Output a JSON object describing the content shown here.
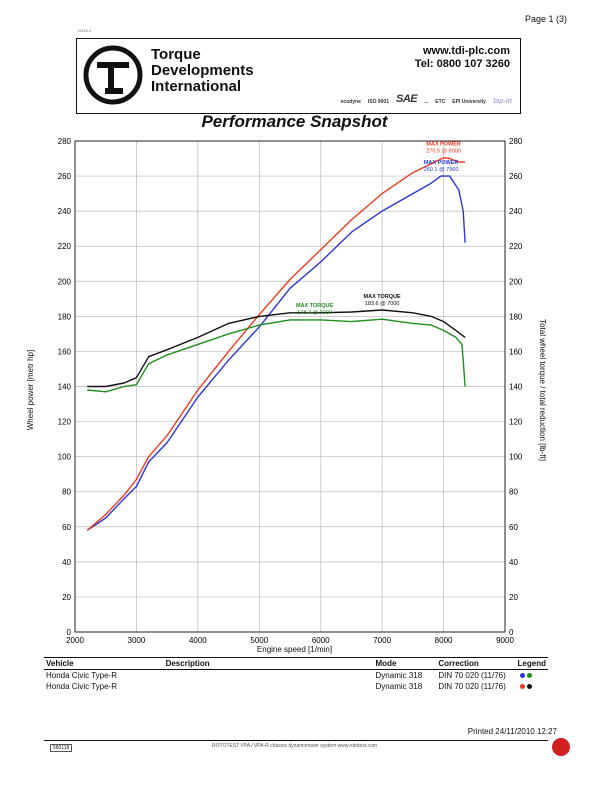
{
  "page": {
    "number": "Page 1 (3)",
    "doc_code": "DS10-1",
    "sheet_number": "580118",
    "printed": "Printed 24/11/2010 12:27",
    "footer_note": "ROTOTEST VPA / VPA-R chassis dynamometer system   www.rototest.com"
  },
  "header": {
    "company_line1": "Torque",
    "company_line2": "Developments",
    "company_line3": "International",
    "website": "www.tdi-plc.com",
    "phone": "Tel: 0800 107 3260",
    "certifications": [
      "ecodyne",
      "ISO 9001",
      "SAE",
      "...",
      "ETC",
      "EPI University",
      "tap-in"
    ]
  },
  "colors": {
    "power_run1": "#2a36d8",
    "power_run2": "#ef3a1e",
    "torque_run1": "#1d8f1d",
    "torque_run2": "#111111",
    "grid": "#bdbdbd",
    "seal": "#d02020"
  },
  "chart_data": {
    "type": "line",
    "title": "Performance Snapshot",
    "xlabel": "Engine speed [1/min]",
    "ylabel": "Wheel power [metr hp]",
    "ylabel_right": "Total wheel torque / total reduction [lb-ft]",
    "xlim": [
      2000,
      9000
    ],
    "ylim": [
      0,
      280
    ],
    "ylim_right": [
      0,
      280
    ],
    "x_ticks": [
      2000,
      3000,
      4000,
      5000,
      6000,
      7000,
      8000,
      9000
    ],
    "y_ticks": [
      0,
      20,
      40,
      60,
      80,
      100,
      120,
      140,
      160,
      180,
      200,
      220,
      240,
      260,
      280
    ],
    "grid": true,
    "series": [
      {
        "axis": "left",
        "color": "#2a36d8",
        "points": [
          [
            2200,
            58
          ],
          [
            2500,
            65
          ],
          [
            2800,
            76
          ],
          [
            3000,
            83
          ],
          [
            3200,
            97
          ],
          [
            3500,
            108
          ],
          [
            4000,
            134
          ],
          [
            4500,
            155
          ],
          [
            5000,
            174
          ],
          [
            5500,
            196
          ],
          [
            6000,
            211
          ],
          [
            6500,
            228
          ],
          [
            7000,
            240
          ],
          [
            7500,
            250
          ],
          [
            7800,
            256
          ],
          [
            7960,
            260.1
          ],
          [
            8100,
            260
          ],
          [
            8250,
            252
          ],
          [
            8320,
            240
          ],
          [
            8350,
            222
          ]
        ]
      },
      {
        "axis": "left",
        "color": "#ef3a1e",
        "points": [
          [
            2200,
            58
          ],
          [
            2500,
            67
          ],
          [
            2800,
            78
          ],
          [
            3000,
            87
          ],
          [
            3200,
            100
          ],
          [
            3500,
            112
          ],
          [
            4000,
            138
          ],
          [
            4500,
            160
          ],
          [
            5000,
            181
          ],
          [
            5500,
            201
          ],
          [
            6000,
            218
          ],
          [
            6500,
            235
          ],
          [
            7000,
            250
          ],
          [
            7500,
            262
          ],
          [
            8000,
            270.5
          ],
          [
            8100,
            270
          ],
          [
            8250,
            268
          ],
          [
            8350,
            268
          ]
        ]
      },
      {
        "axis": "right",
        "color": "#111111",
        "points": [
          [
            2200,
            140
          ],
          [
            2500,
            140
          ],
          [
            2800,
            142
          ],
          [
            3000,
            145
          ],
          [
            3200,
            157
          ],
          [
            3500,
            161
          ],
          [
            4000,
            168
          ],
          [
            4500,
            176
          ],
          [
            5000,
            180
          ],
          [
            5500,
            182
          ],
          [
            6000,
            182
          ],
          [
            6500,
            182.5
          ],
          [
            7000,
            183.6
          ],
          [
            7500,
            182
          ],
          [
            7800,
            180
          ],
          [
            8000,
            177
          ],
          [
            8200,
            172
          ],
          [
            8350,
            168
          ]
        ]
      },
      {
        "axis": "right",
        "color": "#1d8f1d",
        "points": [
          [
            2200,
            138
          ],
          [
            2500,
            137
          ],
          [
            2800,
            140
          ],
          [
            3000,
            141
          ],
          [
            3200,
            153
          ],
          [
            3500,
            158
          ],
          [
            4000,
            164
          ],
          [
            4500,
            170
          ],
          [
            5000,
            175
          ],
          [
            5500,
            178
          ],
          [
            6000,
            178
          ],
          [
            6500,
            177
          ],
          [
            7000,
            178.4
          ],
          [
            7500,
            176
          ],
          [
            7800,
            175
          ],
          [
            8000,
            172
          ],
          [
            8200,
            168
          ],
          [
            8300,
            164
          ],
          [
            8350,
            140
          ]
        ]
      }
    ],
    "annotations": [
      {
        "axis": "left",
        "x": 8000,
        "y": 270.5,
        "label": "MAX POWER",
        "value": "270.5 @ 8000",
        "color": "#ef3a1e"
      },
      {
        "axis": "left",
        "x": 7960,
        "y": 260.1,
        "label": "MAX POWER",
        "value": "260.1 @ 7960",
        "color": "#2a36d8"
      },
      {
        "axis": "right",
        "x": 7000,
        "y": 183.6,
        "label": "MAX TORQUE",
        "value": "183.6 @ 7000",
        "color": "#111111"
      },
      {
        "axis": "right",
        "x": 5900,
        "y": 178.4,
        "label": "MAX TORQUE",
        "value": "178.4 @ 7000",
        "color": "#1d8f1d"
      }
    ]
  },
  "legend_table": {
    "headers": [
      "Vehicle",
      "Description",
      "Mode",
      "Correction",
      "Legend"
    ],
    "rows": [
      {
        "vehicle": "Honda Civic Type-R",
        "description": "",
        "mode": "Dynamic 318",
        "correction": "DIN 70 020 (11/76)",
        "colors": [
          "#2a36d8",
          "#1d8f1d"
        ]
      },
      {
        "vehicle": "Honda Civic Type-R",
        "description": "",
        "mode": "Dynamic 318",
        "correction": "DIN 70 020 (11/76)",
        "colors": [
          "#ef3a1e",
          "#111111"
        ]
      }
    ]
  }
}
